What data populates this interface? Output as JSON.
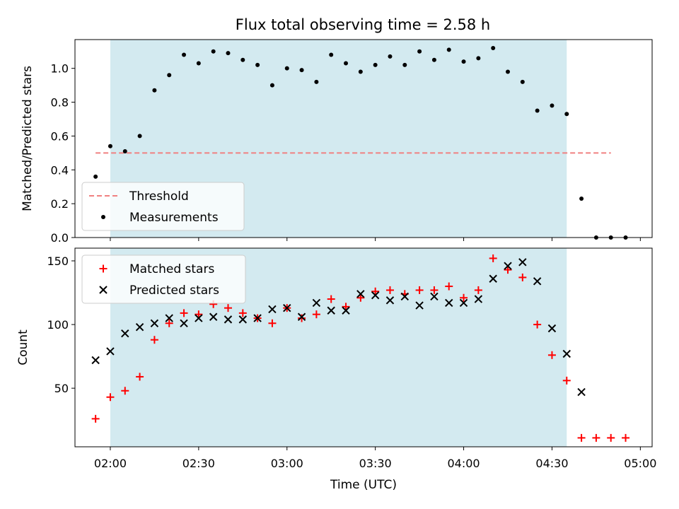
{
  "chart_data": {
    "title": "Flux total observing time = 2.58 h",
    "xlabel": "Time (UTC)",
    "x_ticks": [
      "02:00",
      "02:30",
      "03:00",
      "03:30",
      "04:00",
      "04:30",
      "05:00"
    ],
    "x_axis_range": [
      "01:48",
      "05:04"
    ],
    "shaded_interval": [
      "02:00",
      "04:35"
    ],
    "shade_color": "#d3eaf0",
    "panels": [
      {
        "type": "scatter",
        "ylabel": "Matched/Predicted stars",
        "ylim": [
          0,
          1.17
        ],
        "y_ticks": [
          0.0,
          0.2,
          0.4,
          0.6,
          0.8,
          1.0
        ],
        "legend_position": "lower left",
        "threshold": {
          "name": "Threshold",
          "value": 0.5,
          "x_range": [
            "01:55",
            "04:50"
          ],
          "color": "#f08080"
        },
        "series": [
          {
            "name": "Measurements",
            "color": "#000000",
            "marker": "dot",
            "x": [
              "01:55",
              "02:00",
              "02:05",
              "02:10",
              "02:15",
              "02:20",
              "02:25",
              "02:30",
              "02:35",
              "02:40",
              "02:45",
              "02:50",
              "02:55",
              "03:00",
              "03:05",
              "03:10",
              "03:15",
              "03:20",
              "03:25",
              "03:30",
              "03:35",
              "03:40",
              "03:45",
              "03:50",
              "03:55",
              "04:00",
              "04:05",
              "04:10",
              "04:15",
              "04:20",
              "04:25",
              "04:30",
              "04:35",
              "04:40",
              "04:45",
              "04:50",
              "04:55"
            ],
            "values": [
              0.36,
              0.54,
              0.51,
              0.6,
              0.87,
              0.96,
              1.08,
              1.03,
              1.1,
              1.09,
              1.05,
              1.02,
              0.9,
              1.0,
              0.99,
              0.92,
              1.08,
              1.03,
              0.98,
              1.02,
              1.07,
              1.02,
              1.1,
              1.05,
              1.11,
              1.04,
              1.06,
              1.12,
              0.98,
              0.92,
              0.75,
              0.78,
              0.73,
              0.23,
              0.0,
              0.0,
              0.0
            ]
          }
        ]
      },
      {
        "type": "scatter",
        "ylabel": "Count",
        "ylim": [
          4,
          160
        ],
        "y_ticks": [
          50,
          100,
          150
        ],
        "legend_position": "upper left",
        "series": [
          {
            "name": "Matched stars",
            "color": "#ff0000",
            "marker": "plus",
            "x": [
              "01:55",
              "02:00",
              "02:05",
              "02:10",
              "02:15",
              "02:20",
              "02:25",
              "02:30",
              "02:35",
              "02:40",
              "02:45",
              "02:50",
              "02:55",
              "03:00",
              "03:05",
              "03:10",
              "03:15",
              "03:20",
              "03:25",
              "03:30",
              "03:35",
              "03:40",
              "03:45",
              "03:50",
              "03:55",
              "04:00",
              "04:05",
              "04:10",
              "04:15",
              "04:20",
              "04:25",
              "04:30",
              "04:35",
              "04:40",
              "04:45",
              "04:50",
              "04:55"
            ],
            "values": [
              26,
              43,
              48,
              59,
              88,
              101,
              109,
              108,
              116,
              113,
              109,
              105,
              101,
              113,
              105,
              108,
              120,
              114,
              121,
              126,
              127,
              124,
              127,
              127,
              130,
              121,
              127,
              152,
              143,
              137,
              100,
              76,
              56,
              11,
              11,
              11,
              11
            ]
          },
          {
            "name": "Predicted stars",
            "color": "#000000",
            "marker": "x",
            "x": [
              "01:55",
              "02:00",
              "02:05",
              "02:10",
              "02:15",
              "02:20",
              "02:25",
              "02:30",
              "02:35",
              "02:40",
              "02:45",
              "02:50",
              "02:55",
              "03:00",
              "03:05",
              "03:10",
              "03:15",
              "03:20",
              "03:25",
              "03:30",
              "03:35",
              "03:40",
              "03:45",
              "03:50",
              "03:55",
              "04:00",
              "04:05",
              "04:10",
              "04:15",
              "04:20",
              "04:25",
              "04:30",
              "04:35",
              "04:40"
            ],
            "values": [
              72,
              79,
              93,
              98,
              101,
              105,
              101,
              105,
              106,
              104,
              104,
              105,
              112,
              113,
              106,
              117,
              111,
              111,
              124,
              123,
              119,
              122,
              115,
              122,
              117,
              117,
              120,
              136,
              146,
              149,
              134,
              97,
              77,
              47
            ]
          }
        ]
      }
    ]
  }
}
